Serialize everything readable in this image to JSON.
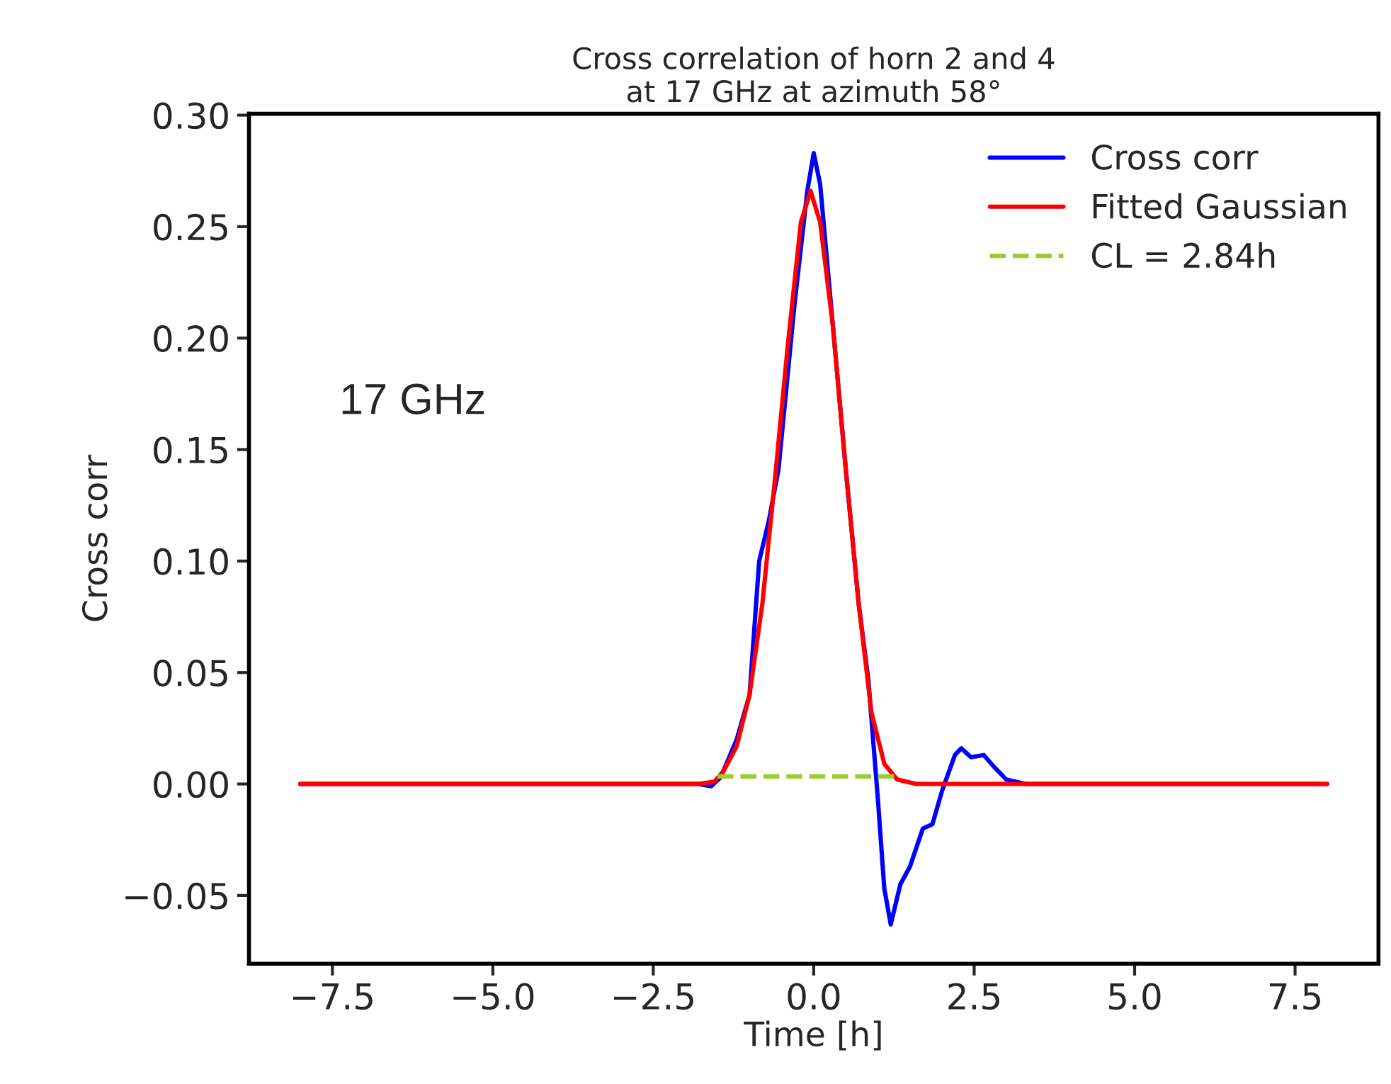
{
  "chart_data": {
    "type": "line",
    "title": "Cross correlation of horn 2 and 4\nat 17 GHz at azimuth 58°",
    "xlabel": "Time [h]",
    "ylabel": "Cross corr",
    "annotations": [
      "17 GHz"
    ],
    "series": [
      {
        "name": "Cross corr",
        "color": "#0000ff",
        "line_style": "solid",
        "x": [
          -8,
          -1.8,
          -1.6,
          -1.45,
          -1.2,
          -1.0,
          -0.85,
          -0.7,
          -0.55,
          -0.3,
          -0.1,
          0.0,
          0.1,
          0.3,
          0.5,
          0.7,
          0.85,
          1.0,
          1.1,
          1.2,
          1.35,
          1.5,
          1.7,
          1.85,
          2.0,
          2.2,
          2.3,
          2.45,
          2.65,
          2.8,
          3.0,
          3.3,
          8
        ],
        "values": [
          0,
          0,
          -0.001,
          0.003,
          0.02,
          0.04,
          0.1,
          0.118,
          0.141,
          0.215,
          0.266,
          0.283,
          0.269,
          0.205,
          0.141,
          0.081,
          0.047,
          -0.007,
          -0.047,
          -0.063,
          -0.045,
          -0.037,
          -0.02,
          -0.018,
          -0.003,
          0.013,
          0.016,
          0.012,
          0.013,
          0.008,
          0.002,
          0,
          0
        ]
      },
      {
        "name": "Fitted Gaussian",
        "color": "#ff0000",
        "line_style": "solid",
        "x": [
          -8,
          -1.8,
          -1.55,
          -1.4,
          -1.2,
          -1.0,
          -0.8,
          -0.6,
          -0.4,
          -0.2,
          -0.05,
          0.1,
          0.3,
          0.5,
          0.7,
          0.9,
          1.1,
          1.3,
          1.6,
          8
        ],
        "values": [
          0,
          0,
          0.001,
          0.006,
          0.017,
          0.04,
          0.081,
          0.138,
          0.198,
          0.252,
          0.266,
          0.252,
          0.205,
          0.141,
          0.081,
          0.032,
          0.009,
          0.002,
          0,
          0
        ]
      },
      {
        "name": "CL = 2.84h",
        "color": "#9acd32",
        "line_style": "dashed",
        "x": [
          -1.5,
          1.34
        ],
        "values": [
          0.0034,
          0.0034
        ]
      }
    ],
    "xlim": [
      -8.8,
      8.8
    ],
    "xticks": [
      {
        "value": -7.5,
        "label": "−7.5"
      },
      {
        "value": -5.0,
        "label": "−5.0"
      },
      {
        "value": -2.5,
        "label": "−2.5"
      },
      {
        "value": 0,
        "label": "0.0"
      },
      {
        "value": 2.5,
        "label": "2.5"
      },
      {
        "value": 5.0,
        "label": "5.0"
      },
      {
        "value": 7.5,
        "label": "7.5"
      }
    ],
    "ylim": [
      -0.0806,
      0.3006
    ],
    "yticks": [
      {
        "value": -0.05,
        "label": "−0.05"
      },
      {
        "value": 0,
        "label": "0.00"
      },
      {
        "value": 0.05,
        "label": "0.05"
      },
      {
        "value": 0.1,
        "label": "0.10"
      },
      {
        "value": 0.15,
        "label": "0.15"
      },
      {
        "value": 0.2,
        "label": "0.20"
      },
      {
        "value": 0.25,
        "label": "0.25"
      },
      {
        "value": 0.3,
        "label": "0.30"
      }
    ],
    "grid": false,
    "legend": "top right",
    "marker": "none"
  }
}
